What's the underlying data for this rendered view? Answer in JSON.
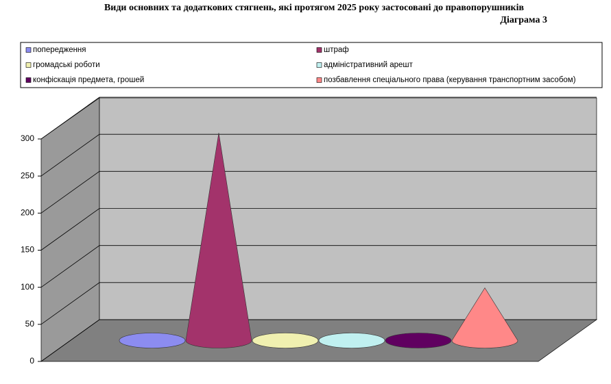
{
  "chart_data": {
    "type": "cone3d",
    "title": "Види основних та додаткових стягнень, які протягом 2025 року застосовані до правопорушників",
    "subtitle": "Діаграма 3",
    "categories": [
      "попередження",
      "штраф",
      "громадські роботи",
      "адміністративний арешт",
      "конфіскація предмета, грошей",
      "позбавлення спеціального права (керування транспортним засобом)"
    ],
    "values": [
      0,
      280,
      0,
      0,
      0,
      71
    ],
    "colors": [
      "#8c8cf0",
      "#a3336b",
      "#f0f0b0",
      "#c0f0f0",
      "#600060",
      "#ff8888"
    ],
    "ylim": [
      0,
      300
    ],
    "yticks": [
      0,
      50,
      100,
      150,
      200,
      250,
      300
    ],
    "grid": true
  }
}
